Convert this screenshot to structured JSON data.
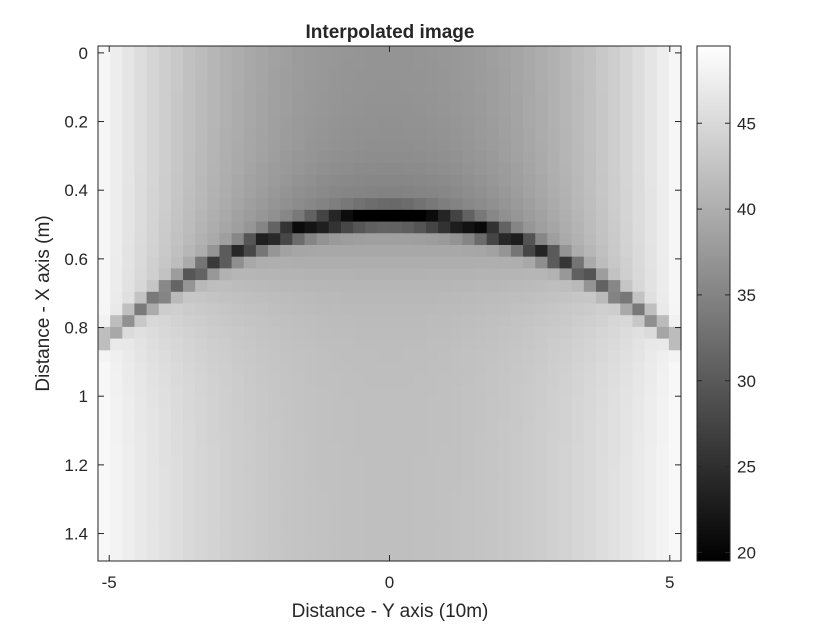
{
  "chart_data": {
    "type": "heatmap",
    "title": "Interpolated image",
    "xlabel": "Distance - Y axis (10m)",
    "ylabel": "Distance - X axis (m)",
    "xlim": [
      -5.2,
      5.2
    ],
    "ylim": [
      -0.02,
      1.48
    ],
    "y_reversed": true,
    "x_ticks": [
      -5,
      0,
      5
    ],
    "x_tick_labels": [
      "-5",
      "0",
      "5"
    ],
    "y_ticks": [
      0,
      0.2,
      0.4,
      0.6,
      0.8,
      1,
      1.2,
      1.4
    ],
    "y_tick_labels": [
      "0",
      "0.2",
      "0.4",
      "0.6",
      "0.8",
      "1",
      "1.2",
      "1.4"
    ],
    "colormap": "gray",
    "clim": [
      19.5,
      49.5
    ],
    "colorbar_ticks": [
      20,
      25,
      30,
      35,
      40,
      45
    ],
    "colorbar_tick_labels": [
      "20",
      "25",
      "30",
      "35",
      "40",
      "45"
    ],
    "grid": false,
    "grid_size": {
      "columns": 48,
      "rows": 44
    },
    "hyperbola": {
      "apex_x": 0.1,
      "apex_y": 0.48,
      "curvature": 0.0085,
      "min_intensity": 19.8
    },
    "value_profile": {
      "center_near_surface": 37,
      "center_far": 42,
      "edge": 49
    },
    "colors": {
      "axis": "#262626",
      "background": "#ffffff"
    }
  }
}
